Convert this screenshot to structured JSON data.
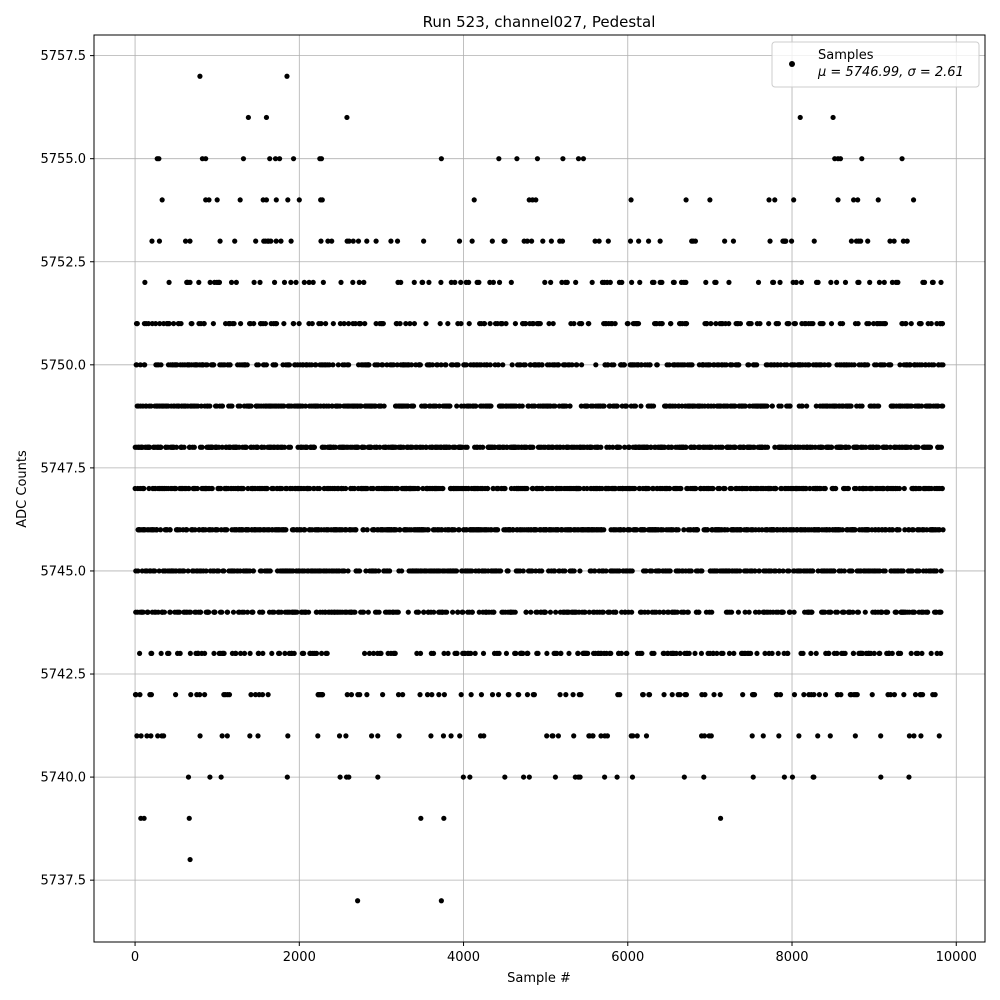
{
  "chart_data": {
    "type": "scatter",
    "title": "Run 523, channel027, Pedestal",
    "xlabel": "Sample #",
    "ylabel": "ADC Counts",
    "xlim": [
      -500,
      10350
    ],
    "ylim": [
      5736.0,
      5758.0
    ],
    "xticks": [
      0,
      2000,
      4000,
      6000,
      8000,
      10000
    ],
    "yticks": [
      5737.5,
      5740.0,
      5742.5,
      5745.0,
      5747.5,
      5750.0,
      5752.5,
      5755.0,
      5757.5
    ],
    "xtick_labels": [
      "0",
      "2000",
      "4000",
      "6000",
      "8000",
      "10000"
    ],
    "ytick_labels": [
      "5737.5",
      "5740.0",
      "5742.5",
      "5745.0",
      "5747.5",
      "5750.0",
      "5752.5",
      "5755.0",
      "5757.5"
    ],
    "grid": true,
    "legend": {
      "position": "top-right",
      "entries": [
        {
          "label": "Samples",
          "stats": "μ = 5746.99, σ = 2.61"
        }
      ]
    },
    "series": [
      {
        "name": "Samples",
        "color": "#000000",
        "marker": "circle",
        "n_points": 9840,
        "mean": 5746.99,
        "std": 2.61,
        "rare_points": [
          {
            "x": 790,
            "y": 5757
          },
          {
            "x": 1850,
            "y": 5757
          },
          {
            "x": 1380,
            "y": 5756
          },
          {
            "x": 1600,
            "y": 5756
          },
          {
            "x": 2580,
            "y": 5756
          },
          {
            "x": 8100,
            "y": 5756
          },
          {
            "x": 8500,
            "y": 5756
          },
          {
            "x": 270,
            "y": 5755
          },
          {
            "x": 290,
            "y": 5755
          },
          {
            "x": 820,
            "y": 5755
          },
          {
            "x": 860,
            "y": 5755
          },
          {
            "x": 1320,
            "y": 5755
          },
          {
            "x": 1640,
            "y": 5755
          },
          {
            "x": 1710,
            "y": 5755
          },
          {
            "x": 1760,
            "y": 5755
          },
          {
            "x": 1930,
            "y": 5755
          },
          {
            "x": 2250,
            "y": 5755
          },
          {
            "x": 2270,
            "y": 5755
          },
          {
            "x": 3730,
            "y": 5755
          },
          {
            "x": 4430,
            "y": 5755
          },
          {
            "x": 4650,
            "y": 5755
          },
          {
            "x": 4900,
            "y": 5755
          },
          {
            "x": 5210,
            "y": 5755
          },
          {
            "x": 5400,
            "y": 5755
          },
          {
            "x": 5460,
            "y": 5755
          },
          {
            "x": 8520,
            "y": 5755
          },
          {
            "x": 8560,
            "y": 5755
          },
          {
            "x": 8590,
            "y": 5755
          },
          {
            "x": 8850,
            "y": 5755
          },
          {
            "x": 9340,
            "y": 5755
          },
          {
            "x": 330,
            "y": 5754
          },
          {
            "x": 860,
            "y": 5754
          },
          {
            "x": 900,
            "y": 5754
          },
          {
            "x": 1000,
            "y": 5754
          },
          {
            "x": 1280,
            "y": 5754
          },
          {
            "x": 1560,
            "y": 5754
          },
          {
            "x": 1600,
            "y": 5754
          },
          {
            "x": 1720,
            "y": 5754
          },
          {
            "x": 1860,
            "y": 5754
          },
          {
            "x": 2000,
            "y": 5754
          },
          {
            "x": 2260,
            "y": 5754
          },
          {
            "x": 2280,
            "y": 5754
          },
          {
            "x": 4130,
            "y": 5754
          },
          {
            "x": 4800,
            "y": 5754
          },
          {
            "x": 4840,
            "y": 5754
          },
          {
            "x": 4880,
            "y": 5754
          },
          {
            "x": 6040,
            "y": 5754
          },
          {
            "x": 6710,
            "y": 5754
          },
          {
            "x": 7000,
            "y": 5754
          },
          {
            "x": 7720,
            "y": 5754
          },
          {
            "x": 7790,
            "y": 5754
          },
          {
            "x": 8020,
            "y": 5754
          },
          {
            "x": 8560,
            "y": 5754
          },
          {
            "x": 8750,
            "y": 5754
          },
          {
            "x": 8800,
            "y": 5754
          },
          {
            "x": 9050,
            "y": 5754
          },
          {
            "x": 9480,
            "y": 5754
          },
          {
            "x": 70,
            "y": 5739
          },
          {
            "x": 110,
            "y": 5739
          },
          {
            "x": 660,
            "y": 5739
          },
          {
            "x": 3480,
            "y": 5739
          },
          {
            "x": 3760,
            "y": 5739
          },
          {
            "x": 7130,
            "y": 5739
          },
          {
            "x": 670,
            "y": 5738
          },
          {
            "x": 2710,
            "y": 5737
          },
          {
            "x": 3730,
            "y": 5737
          }
        ]
      }
    ]
  }
}
